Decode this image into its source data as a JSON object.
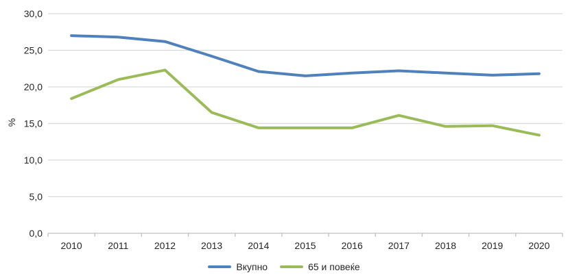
{
  "chart_data": {
    "type": "line",
    "title": "",
    "xlabel": "",
    "ylabel": "%",
    "categories": [
      "2010",
      "2011",
      "2012",
      "2013",
      "2014",
      "2015",
      "2016",
      "2017",
      "2018",
      "2019",
      "2020"
    ],
    "series": [
      {
        "name": "Вкупно",
        "color": "#4F81BD",
        "values": [
          27.0,
          26.8,
          26.2,
          24.2,
          22.1,
          21.5,
          21.9,
          22.2,
          21.9,
          21.6,
          21.8
        ]
      },
      {
        "name": "65 и повеќе",
        "color": "#9BBB59",
        "values": [
          18.4,
          21.0,
          22.3,
          16.5,
          14.4,
          14.4,
          14.4,
          16.1,
          14.6,
          14.7,
          13.4
        ]
      }
    ],
    "ylim": [
      0,
      30
    ],
    "ytick_step": 5,
    "ytick_labels": [
      "0,0",
      "5,0",
      "10,0",
      "15,0",
      "20,0",
      "25,0",
      "30,0"
    ],
    "grid": true,
    "legend_position": "bottom"
  },
  "colors": {
    "gridline": "#D9D9D9",
    "axis": "#BFBFBF",
    "text": "#262626",
    "background": "#FFFFFF"
  }
}
